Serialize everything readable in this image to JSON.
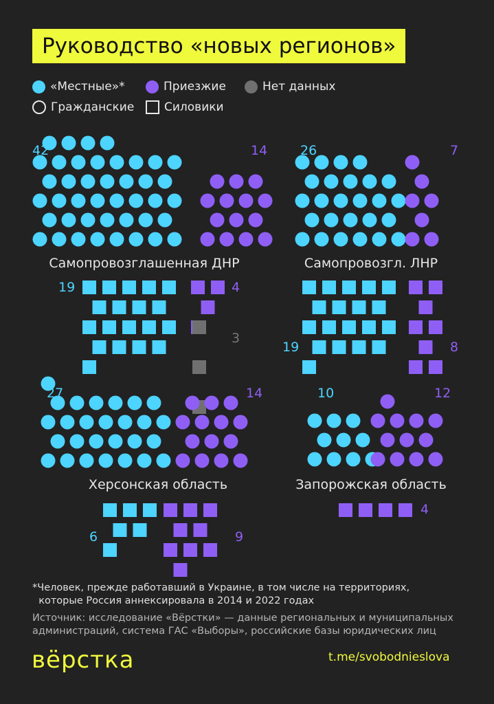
{
  "title": "Руководство «новых регионов»",
  "colors": {
    "local": "#4dd4ff",
    "arrived": "#8f5ff5",
    "nodata": "#707070",
    "accent": "#f0fa3c",
    "background": "#222222"
  },
  "legend": {
    "local": "«Местные»*",
    "arrived": "Приезжие",
    "nodata": "Нет данных",
    "civil": "Гражданские",
    "security": "Силовики"
  },
  "chart_data": {
    "type": "dot-chart",
    "shape_meaning": {
      "circle": "Гражданские",
      "square": "Силовики"
    },
    "regions": [
      {
        "name": "Самопровозглашенная ДНР",
        "civil": {
          "local": 42,
          "arrived": 14
        },
        "security": {
          "local": 19,
          "arrived": 4,
          "nodata": 3
        }
      },
      {
        "name": "Самопровозгл. ЛНР",
        "civil": {
          "local": 26,
          "arrived": 7
        },
        "security": {
          "local": 19,
          "arrived": 8
        }
      },
      {
        "name": "Херсонская область",
        "civil": {
          "local": 27,
          "arrived": 14
        },
        "security": {
          "local": 6,
          "arrived": 9
        }
      },
      {
        "name": "Запорожская область",
        "civil": {
          "local": 10,
          "arrived": 12
        },
        "security": {
          "arrived": 4
        }
      }
    ]
  },
  "footnote": "*Человек, прежде работавший в Украине, в том числе на территориях, которые Россия аннексировала в 2014 и 2022 годах",
  "footnote_l1": "Человек, прежде работавший в Украине, в том числе на территориях,",
  "footnote_l2": "которые Россия аннексировала в 2014 и 2022 годах",
  "source_l1": "Источник: исследование «Вёрстки» — данные региональных и муниципальных",
  "source_l2": "администраций, система ГАС «Выборы», российские базы юридических лиц",
  "logo": "вёрстка",
  "link": "t.me/svobodnieslova"
}
